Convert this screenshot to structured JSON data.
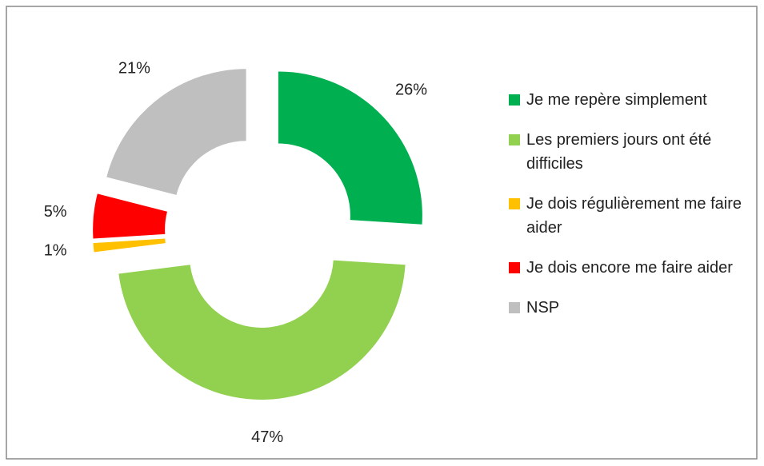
{
  "chart_data": {
    "type": "donut",
    "categories": [
      "Je me repère simplement",
      "Les premiers jours ont été difficiles",
      "Je dois régulièrement me faire aider",
      "Je dois encore me faire aider",
      "NSP"
    ],
    "values": [
      26,
      47,
      1,
      5,
      21
    ],
    "value_labels": [
      "26%",
      "47%",
      "1%",
      "5%",
      "21%"
    ],
    "colors": [
      "#00b050",
      "#92d050",
      "#ffc000",
      "#ff0000",
      "#bfbfbf"
    ],
    "legend": "right"
  }
}
